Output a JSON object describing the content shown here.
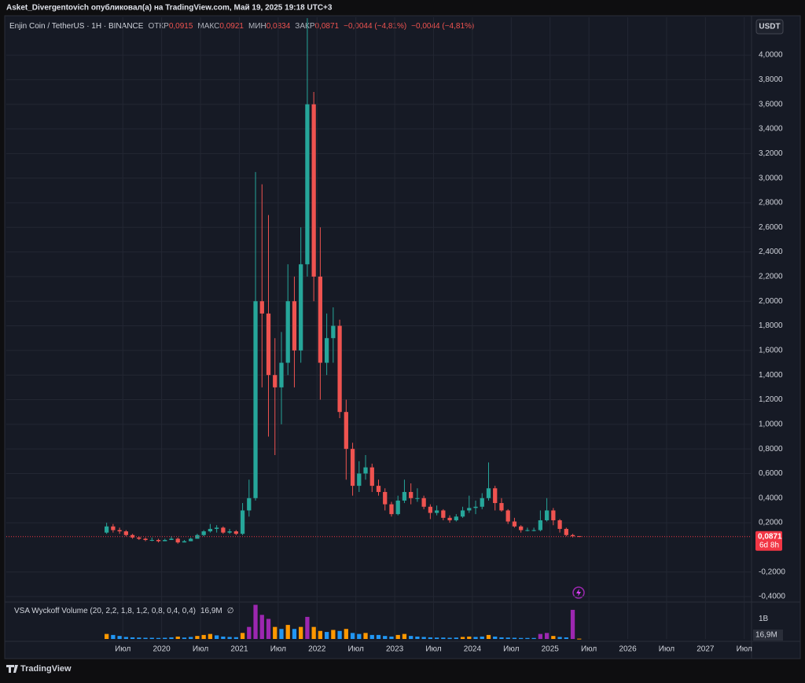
{
  "header": {
    "publisher": "Asket_Divergentovich опубликовал(а) на TradingView.com, Май 19, 2025 19:18 UTC+3",
    "brand": "TradingView",
    "currency_button": "USDT"
  },
  "chart_data": {
    "type": "candlestick",
    "title": "Enjin Coin / TetherUS · 1Н · BINANCE",
    "ohlc_labels": [
      {
        "name": "ОТКР",
        "label": "0,0915"
      },
      {
        "name": "МАКС",
        "label": "0,0921"
      },
      {
        "name": "МИН",
        "label": "0,0834"
      },
      {
        "name": "ЗАКР",
        "label": "0,0871"
      }
    ],
    "change_labels": [
      "−0,0044 (−4,81%)",
      "−0,0044 (−4,81%)"
    ],
    "up_color": "#26a69a",
    "down_color": "#ef5350",
    "x": [
      "2019-04",
      "2019-05",
      "2019-06",
      "2019-07",
      "2019-08",
      "2019-09",
      "2019-10",
      "2019-11",
      "2019-12",
      "2020-01",
      "2020-02",
      "2020-03",
      "2020-04",
      "2020-05",
      "2020-06",
      "2020-07",
      "2020-08",
      "2020-09",
      "2020-10",
      "2020-11",
      "2020-12",
      "2021-01",
      "2021-02",
      "2021-03",
      "2021-04",
      "2021-05",
      "2021-06",
      "2021-07",
      "2021-08",
      "2021-09",
      "2021-10",
      "2021-11",
      "2021-12",
      "2022-01",
      "2022-02",
      "2022-03",
      "2022-04",
      "2022-05",
      "2022-06",
      "2022-07",
      "2022-08",
      "2022-09",
      "2022-10",
      "2022-11",
      "2022-12",
      "2023-01",
      "2023-02",
      "2023-03",
      "2023-04",
      "2023-05",
      "2023-06",
      "2023-07",
      "2023-08",
      "2023-09",
      "2023-10",
      "2023-11",
      "2023-12",
      "2024-01",
      "2024-02",
      "2024-03",
      "2024-04",
      "2024-05",
      "2024-06",
      "2024-07",
      "2024-08",
      "2024-09",
      "2024-10",
      "2024-11",
      "2024-12",
      "2025-01",
      "2025-02",
      "2025-03",
      "2025-04",
      "2025-05"
    ],
    "open": [
      0.12,
      0.17,
      0.14,
      0.13,
      0.1,
      0.08,
      0.07,
      0.06,
      0.06,
      0.05,
      0.06,
      0.07,
      0.04,
      0.05,
      0.07,
      0.1,
      0.13,
      0.15,
      0.16,
      0.12,
      0.13,
      0.11,
      0.3,
      0.4,
      2.0,
      1.9,
      1.4,
      1.3,
      1.5,
      2.0,
      1.6,
      2.3,
      3.6,
      2.2,
      1.5,
      1.7,
      1.8,
      1.1,
      0.8,
      0.5,
      0.6,
      0.65,
      0.5,
      0.45,
      0.35,
      0.27,
      0.38,
      0.45,
      0.4,
      0.4,
      0.33,
      0.28,
      0.3,
      0.24,
      0.22,
      0.25,
      0.3,
      0.32,
      0.33,
      0.4,
      0.48,
      0.36,
      0.3,
      0.21,
      0.17,
      0.14,
      0.14,
      0.14,
      0.22,
      0.3,
      0.22,
      0.15,
      0.1,
      0.0915
    ],
    "high": [
      0.2,
      0.19,
      0.16,
      0.14,
      0.11,
      0.09,
      0.08,
      0.08,
      0.07,
      0.07,
      0.09,
      0.08,
      0.06,
      0.08,
      0.11,
      0.14,
      0.19,
      0.18,
      0.17,
      0.15,
      0.14,
      0.36,
      0.55,
      3.05,
      2.95,
      2.7,
      1.7,
      1.75,
      2.3,
      2.2,
      2.6,
      4.3,
      3.7,
      2.6,
      1.9,
      1.95,
      1.85,
      1.2,
      0.85,
      0.7,
      0.75,
      0.68,
      0.55,
      0.48,
      0.37,
      0.42,
      0.55,
      0.52,
      0.48,
      0.42,
      0.35,
      0.34,
      0.31,
      0.26,
      0.27,
      0.33,
      0.42,
      0.38,
      0.44,
      0.69,
      0.5,
      0.4,
      0.31,
      0.24,
      0.18,
      0.16,
      0.16,
      0.3,
      0.4,
      0.32,
      0.23,
      0.16,
      0.11,
      0.0921
    ],
    "low": [
      0.11,
      0.12,
      0.11,
      0.09,
      0.07,
      0.06,
      0.05,
      0.05,
      0.04,
      0.05,
      0.06,
      0.03,
      0.04,
      0.05,
      0.07,
      0.09,
      0.12,
      0.12,
      0.11,
      0.11,
      0.1,
      0.1,
      0.25,
      0.38,
      1.3,
      0.9,
      0.75,
      1.0,
      1.4,
      1.3,
      1.5,
      2.2,
      2.0,
      1.2,
      1.4,
      1.5,
      1.05,
      0.55,
      0.42,
      0.45,
      0.55,
      0.45,
      0.42,
      0.3,
      0.25,
      0.26,
      0.36,
      0.35,
      0.37,
      0.31,
      0.23,
      0.26,
      0.22,
      0.2,
      0.21,
      0.24,
      0.28,
      0.27,
      0.31,
      0.38,
      0.3,
      0.29,
      0.19,
      0.16,
      0.12,
      0.13,
      0.13,
      0.13,
      0.21,
      0.18,
      0.12,
      0.09,
      0.08,
      0.0834
    ],
    "close": [
      0.17,
      0.14,
      0.13,
      0.1,
      0.08,
      0.07,
      0.06,
      0.06,
      0.05,
      0.06,
      0.07,
      0.04,
      0.05,
      0.07,
      0.1,
      0.13,
      0.15,
      0.16,
      0.12,
      0.13,
      0.11,
      0.3,
      0.4,
      2.0,
      1.9,
      1.4,
      1.3,
      1.5,
      2.0,
      1.6,
      2.3,
      3.6,
      2.2,
      1.5,
      1.7,
      1.8,
      1.1,
      0.8,
      0.5,
      0.6,
      0.65,
      0.5,
      0.45,
      0.35,
      0.27,
      0.38,
      0.45,
      0.4,
      0.4,
      0.33,
      0.28,
      0.3,
      0.24,
      0.22,
      0.25,
      0.3,
      0.32,
      0.33,
      0.4,
      0.48,
      0.36,
      0.3,
      0.21,
      0.17,
      0.14,
      0.14,
      0.14,
      0.22,
      0.3,
      0.22,
      0.15,
      0.1,
      0.09,
      0.0871
    ],
    "xlim": [
      "2018-01",
      "2027-08"
    ],
    "xticks": [
      {
        "value": "2019-07",
        "label": "Июл"
      },
      {
        "value": "2020-01",
        "label": "2020"
      },
      {
        "value": "2020-07",
        "label": "Июл"
      },
      {
        "value": "2021-01",
        "label": "2021"
      },
      {
        "value": "2021-07",
        "label": "Июл"
      },
      {
        "value": "2022-01",
        "label": "2022"
      },
      {
        "value": "2022-07",
        "label": "Июл"
      },
      {
        "value": "2023-01",
        "label": "2023"
      },
      {
        "value": "2023-07",
        "label": "Июл"
      },
      {
        "value": "2024-01",
        "label": "2024"
      },
      {
        "value": "2024-07",
        "label": "Июл"
      },
      {
        "value": "2025-01",
        "label": "2025"
      },
      {
        "value": "2025-07",
        "label": "Июл"
      },
      {
        "value": "2026-01",
        "label": "2026"
      },
      {
        "value": "2026-07",
        "label": "Июл"
      },
      {
        "value": "2027-01",
        "label": "2027"
      },
      {
        "value": "2027-07",
        "label": "Июл"
      }
    ],
    "ylim": [
      -0.438,
      4.307
    ],
    "yticks": [
      {
        "value": -0.4,
        "label": "-0,4000"
      },
      {
        "value": -0.2,
        "label": "-0,2000"
      },
      {
        "value": 0.2,
        "label": "0,2000"
      },
      {
        "value": 0.4,
        "label": "0,4000"
      },
      {
        "value": 0.6,
        "label": "0,6000"
      },
      {
        "value": 0.8,
        "label": "0,8000"
      },
      {
        "value": 1.0,
        "label": "1,0000"
      },
      {
        "value": 1.2,
        "label": "1,2000"
      },
      {
        "value": 1.4,
        "label": "1,4000"
      },
      {
        "value": 1.6,
        "label": "1,6000"
      },
      {
        "value": 1.8,
        "label": "1,8000"
      },
      {
        "value": 2.0,
        "label": "2,0000"
      },
      {
        "value": 2.2,
        "label": "2,2000"
      },
      {
        "value": 2.4,
        "label": "2,4000"
      },
      {
        "value": 2.6,
        "label": "2,6000"
      },
      {
        "value": 2.8,
        "label": "2,8000"
      },
      {
        "value": 3.0,
        "label": "3,0000"
      },
      {
        "value": 3.2,
        "label": "3,2000"
      },
      {
        "value": 3.4,
        "label": "3,4000"
      },
      {
        "value": 3.6,
        "label": "3,6000"
      },
      {
        "value": 3.8,
        "label": "3,8000"
      },
      {
        "value": 4.0,
        "label": "4,0000"
      }
    ],
    "grid": true,
    "last_price": {
      "value": 0.0871,
      "label": "0,0871",
      "countdown": "6d 8h",
      "color": "#f23645"
    },
    "volume": {
      "title": "VSA Wyckoff Volume (20, 2,2, 1,8, 1,2, 0,8, 0,4, 0,4)",
      "last_label": "16,9M",
      "extra": "∅",
      "values": [
        250000000,
        200000000,
        150000000,
        100000000,
        80000000,
        70000000,
        60000000,
        60000000,
        50000000,
        60000000,
        80000000,
        120000000,
        70000000,
        100000000,
        150000000,
        200000000,
        250000000,
        180000000,
        120000000,
        100000000,
        90000000,
        300000000,
        600000000,
        1700000000,
        1200000000,
        1000000000,
        600000000,
        500000000,
        700000000,
        500000000,
        600000000,
        1100000000,
        600000000,
        400000000,
        350000000,
        450000000,
        400000000,
        500000000,
        300000000,
        250000000,
        300000000,
        200000000,
        200000000,
        150000000,
        120000000,
        200000000,
        250000000,
        150000000,
        120000000,
        100000000,
        80000000,
        70000000,
        70000000,
        60000000,
        70000000,
        100000000,
        120000000,
        100000000,
        120000000,
        200000000,
        120000000,
        80000000,
        70000000,
        60000000,
        50000000,
        50000000,
        50000000,
        250000000,
        300000000,
        150000000,
        100000000,
        80000000,
        1450000000,
        16900000
      ],
      "colors": [
        "#ff9800",
        "#2196f3",
        "#2196f3",
        "#2196f3",
        "#2196f3",
        "#2196f3",
        "#2196f3",
        "#2196f3",
        "#2196f3",
        "#2196f3",
        "#2196f3",
        "#ff9800",
        "#2196f3",
        "#2196f3",
        "#ff9800",
        "#ff9800",
        "#ff9800",
        "#2196f3",
        "#2196f3",
        "#2196f3",
        "#2196f3",
        "#ff9800",
        "#9c27b0",
        "#9c27b0",
        "#9c27b0",
        "#9c27b0",
        "#ff9800",
        "#2196f3",
        "#ff9800",
        "#2196f3",
        "#ff9800",
        "#9c27b0",
        "#ff9800",
        "#ff9800",
        "#2196f3",
        "#ff9800",
        "#2196f3",
        "#ff9800",
        "#2196f3",
        "#2196f3",
        "#ff9800",
        "#2196f3",
        "#2196f3",
        "#2196f3",
        "#2196f3",
        "#ff9800",
        "#ff9800",
        "#2196f3",
        "#2196f3",
        "#2196f3",
        "#2196f3",
        "#2196f3",
        "#2196f3",
        "#2196f3",
        "#2196f3",
        "#ff9800",
        "#ff9800",
        "#2196f3",
        "#2196f3",
        "#ff9800",
        "#2196f3",
        "#2196f3",
        "#2196f3",
        "#2196f3",
        "#2196f3",
        "#2196f3",
        "#2196f3",
        "#9c27b0",
        "#9c27b0",
        "#ff9800",
        "#2196f3",
        "#2196f3",
        "#9c27b0",
        "#ff9800"
      ],
      "ylim": [
        0,
        1760000000
      ],
      "yticks": [
        {
          "value": 1000000000,
          "label": "1B"
        }
      ]
    }
  }
}
